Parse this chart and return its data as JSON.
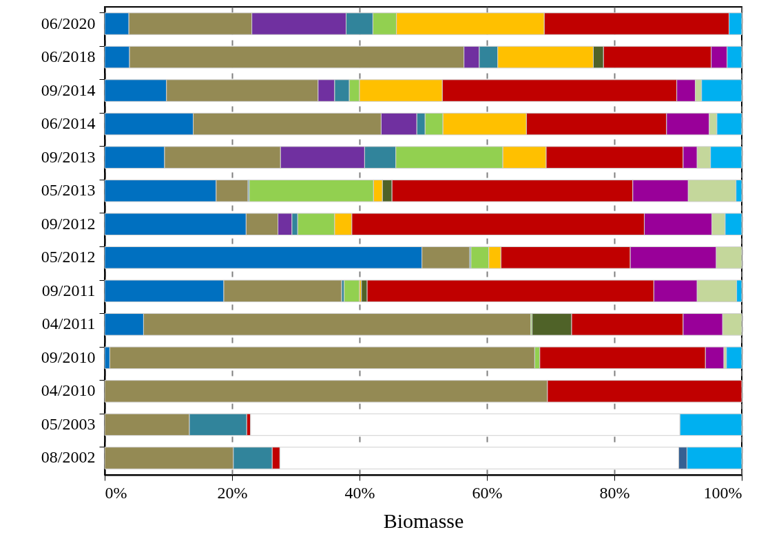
{
  "chart_data": {
    "type": "bar",
    "orientation": "horizontal",
    "stacked": true,
    "xlabel": "Biomasse",
    "categories": [
      "06/2020",
      "06/2018",
      "09/2014",
      "06/2014",
      "09/2013",
      "05/2013",
      "09/2012",
      "05/2012",
      "09/2011",
      "04/2011",
      "09/2010",
      "04/2010",
      "05/2003",
      "08/2002"
    ],
    "xlim": [
      0,
      100
    ],
    "xticks": [
      {
        "value": 0,
        "label": "0%"
      },
      {
        "value": 20,
        "label": "20%"
      },
      {
        "value": 40,
        "label": "40%"
      },
      {
        "value": 60,
        "label": "60%"
      },
      {
        "value": 80,
        "label": "80%"
      },
      {
        "value": 100,
        "label": "100%"
      }
    ],
    "grid": "x",
    "series": [
      {
        "color": "#0070c0",
        "values": [
          3.8,
          3.9,
          9.7,
          13.9,
          9.4,
          17.5,
          22.2,
          49.8,
          18.7,
          6.1,
          0.8,
          null,
          null,
          null
        ]
      },
      {
        "color": "#948a54",
        "values": [
          19.3,
          52.5,
          23.8,
          29.5,
          18.2,
          5.0,
          5.0,
          7.5,
          18.5,
          60.8,
          66.7,
          69.5,
          13.3,
          20.2
        ]
      },
      {
        "color": "#7030a0",
        "values": [
          14.8,
          2.4,
          2.6,
          5.6,
          13.2,
          null,
          2.2,
          null,
          null,
          null,
          null,
          null,
          null,
          null
        ]
      },
      {
        "color": "#31849b",
        "values": [
          4.2,
          2.9,
          2.3,
          1.3,
          4.9,
          0.2,
          0.9,
          0.2,
          0.4,
          null,
          null,
          null,
          9.0,
          6.1
        ]
      },
      {
        "color": "#92d050",
        "values": [
          3.7,
          null,
          1.6,
          2.8,
          16.8,
          19.5,
          5.8,
          2.8,
          2.4,
          0.2,
          0.8,
          null,
          null,
          null
        ]
      },
      {
        "color": "#ffc000",
        "values": [
          23.2,
          15.0,
          13.0,
          13.1,
          6.8,
          1.4,
          2.7,
          1.9,
          0.3,
          null,
          null,
          null,
          null,
          null
        ]
      },
      {
        "color": "#4f6228",
        "values": [
          null,
          1.6,
          null,
          null,
          null,
          1.5,
          null,
          null,
          0.9,
          6.2,
          null,
          null,
          null,
          null
        ]
      },
      {
        "color": "#c00000",
        "values": [
          29.0,
          16.9,
          36.8,
          22.0,
          21.5,
          37.8,
          45.9,
          20.3,
          45.0,
          17.5,
          26.0,
          30.5,
          0.6,
          1.2
        ]
      },
      {
        "color": "#990099",
        "values": [
          null,
          2.5,
          2.9,
          6.7,
          2.2,
          8.7,
          10.6,
          13.5,
          6.8,
          6.2,
          2.9,
          null,
          null,
          null
        ]
      },
      {
        "color": "#c4d79b",
        "values": [
          null,
          null,
          1.0,
          1.2,
          2.1,
          7.5,
          2.1,
          4.0,
          6.2,
          3.0,
          0.4,
          null,
          null,
          null
        ]
      },
      {
        "color": "#ffffff",
        "values": [
          null,
          null,
          null,
          null,
          null,
          null,
          null,
          null,
          null,
          null,
          null,
          null,
          67.4,
          62.6
        ]
      },
      {
        "color": "#366092",
        "values": [
          null,
          null,
          null,
          null,
          null,
          null,
          null,
          null,
          null,
          null,
          null,
          null,
          null,
          1.3
        ]
      },
      {
        "color": "#00b0f0",
        "values": [
          2.0,
          2.3,
          6.3,
          3.9,
          4.9,
          0.9,
          2.6,
          null,
          0.8,
          null,
          2.4,
          null,
          9.7,
          8.6
        ]
      }
    ]
  }
}
